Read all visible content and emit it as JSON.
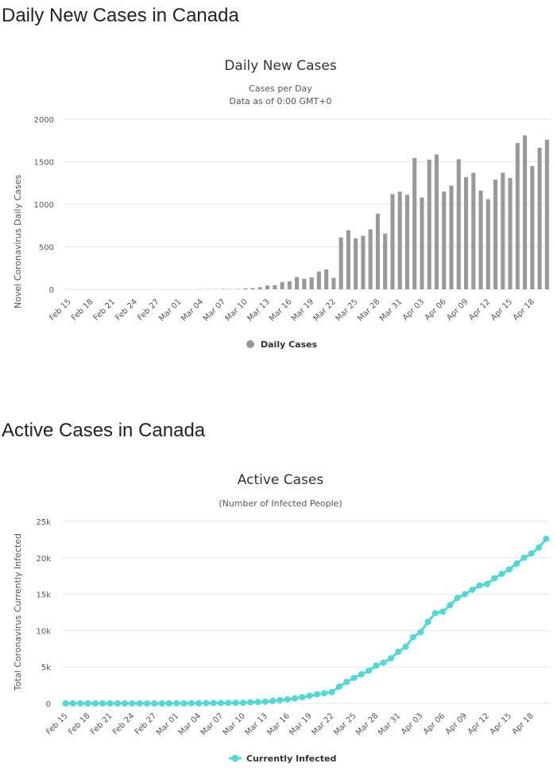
{
  "page": {
    "section1_title": "Daily New Cases in Canada",
    "section2_title": "Active Cases in Canada"
  },
  "chart_data": [
    {
      "type": "bar",
      "title": "Daily New Cases",
      "subtitle_lines": [
        "Cases per Day",
        "Data as of 0:00 GMT+0"
      ],
      "xlabel": "",
      "ylabel": "Novel Coronavirus Daily Cases",
      "ylim": [
        0,
        2000
      ],
      "y_ticks": [
        "0",
        "500",
        "1000",
        "1500",
        "2000"
      ],
      "y_tick_values": [
        0,
        500,
        1000,
        1500,
        2000
      ],
      "categories": [
        "Feb 15",
        "Feb 16",
        "Feb 17",
        "Feb 18",
        "Feb 19",
        "Feb 20",
        "Feb 21",
        "Feb 22",
        "Feb 23",
        "Feb 24",
        "Feb 25",
        "Feb 26",
        "Feb 27",
        "Feb 28",
        "Feb 29",
        "Mar 01",
        "Mar 02",
        "Mar 03",
        "Mar 04",
        "Mar 05",
        "Mar 06",
        "Mar 07",
        "Mar 08",
        "Mar 09",
        "Mar 10",
        "Mar 11",
        "Mar 12",
        "Mar 13",
        "Mar 14",
        "Mar 15",
        "Mar 16",
        "Mar 17",
        "Mar 18",
        "Mar 19",
        "Mar 20",
        "Mar 21",
        "Mar 22",
        "Mar 23",
        "Mar 24",
        "Mar 25",
        "Mar 26",
        "Mar 27",
        "Mar 28",
        "Mar 29",
        "Mar 30",
        "Mar 31",
        "Apr 01",
        "Apr 02",
        "Apr 03",
        "Apr 04",
        "Apr 05",
        "Apr 06",
        "Apr 07",
        "Apr 08",
        "Apr 09",
        "Apr 10",
        "Apr 11",
        "Apr 12",
        "Apr 13",
        "Apr 14",
        "Apr 15",
        "Apr 16",
        "Apr 17",
        "Apr 18",
        "Apr 19",
        "Apr 20"
      ],
      "x_tick_labels": [
        "Feb 15",
        "Feb 18",
        "Feb 21",
        "Feb 24",
        "Feb 27",
        "Mar 01",
        "Mar 04",
        "Mar 07",
        "Mar 10",
        "Mar 13",
        "Mar 16",
        "Mar 19",
        "Mar 22",
        "Mar 25",
        "Mar 28",
        "Mar 31",
        "Apr 03",
        "Apr 06",
        "Apr 09",
        "Apr 12",
        "Apr 15",
        "Apr 18"
      ],
      "series": [
        {
          "name": "Daily Cases",
          "color": "#999999",
          "values": [
            0,
            0,
            0,
            0,
            0,
            0,
            0,
            0,
            0,
            0,
            0,
            0,
            0,
            0,
            0,
            0,
            0,
            0,
            2,
            2,
            3,
            5,
            2,
            4,
            12,
            15,
            25,
            45,
            50,
            85,
            95,
            145,
            125,
            140,
            210,
            235,
            135,
            610,
            695,
            600,
            630,
            705,
            890,
            655,
            1120,
            1150,
            1110,
            1545,
            1080,
            1525,
            1585,
            1150,
            1220,
            1530,
            1320,
            1370,
            1160,
            1060,
            1290,
            1370,
            1310,
            1720,
            1810,
            1450,
            1665,
            1760
          ]
        }
      ],
      "legend": "bottom-center",
      "grid": true
    },
    {
      "type": "line",
      "title": "Active Cases",
      "subtitle_lines": [
        "(Number of Infected People)"
      ],
      "xlabel": "",
      "ylabel": "Total Coronavirus Currently Infected",
      "ylim": [
        0,
        25000
      ],
      "y_ticks": [
        "0",
        "5k",
        "10k",
        "15k",
        "20k",
        "25k"
      ],
      "y_tick_values": [
        0,
        5000,
        10000,
        15000,
        20000,
        25000
      ],
      "categories": [
        "Feb 15",
        "Feb 16",
        "Feb 17",
        "Feb 18",
        "Feb 19",
        "Feb 20",
        "Feb 21",
        "Feb 22",
        "Feb 23",
        "Feb 24",
        "Feb 25",
        "Feb 26",
        "Feb 27",
        "Feb 28",
        "Feb 29",
        "Mar 01",
        "Mar 02",
        "Mar 03",
        "Mar 04",
        "Mar 05",
        "Mar 06",
        "Mar 07",
        "Mar 08",
        "Mar 09",
        "Mar 10",
        "Mar 11",
        "Mar 12",
        "Mar 13",
        "Mar 14",
        "Mar 15",
        "Mar 16",
        "Mar 17",
        "Mar 18",
        "Mar 19",
        "Mar 20",
        "Mar 21",
        "Mar 22",
        "Mar 23",
        "Mar 24",
        "Mar 25",
        "Mar 26",
        "Mar 27",
        "Mar 28",
        "Mar 29",
        "Mar 30",
        "Mar 31",
        "Apr 01",
        "Apr 02",
        "Apr 03",
        "Apr 04",
        "Apr 05",
        "Apr 06",
        "Apr 07",
        "Apr 08",
        "Apr 09",
        "Apr 10",
        "Apr 11",
        "Apr 12",
        "Apr 13",
        "Apr 14",
        "Apr 15",
        "Apr 16",
        "Apr 17",
        "Apr 18",
        "Apr 19",
        "Apr 20"
      ],
      "x_tick_labels": [
        "Feb 15",
        "Feb 18",
        "Feb 21",
        "Feb 24",
        "Feb 27",
        "Mar 01",
        "Mar 04",
        "Mar 07",
        "Mar 10",
        "Mar 13",
        "Mar 16",
        "Mar 19",
        "Mar 22",
        "Mar 25",
        "Mar 28",
        "Mar 31",
        "Apr 03",
        "Apr 06",
        "Apr 09",
        "Apr 12",
        "Apr 15",
        "Apr 18"
      ],
      "series": [
        {
          "name": "Currently Infected",
          "color": "#50dad3",
          "values": [
            5,
            5,
            5,
            5,
            5,
            5,
            5,
            5,
            5,
            5,
            5,
            5,
            5,
            5,
            10,
            12,
            15,
            18,
            25,
            35,
            50,
            60,
            70,
            85,
            100,
            150,
            200,
            250,
            350,
            450,
            550,
            700,
            850,
            1050,
            1250,
            1400,
            1550,
            2300,
            2950,
            3500,
            4000,
            4500,
            5200,
            5600,
            6200,
            7100,
            7800,
            9100,
            9800,
            11200,
            12400,
            12600,
            13500,
            14500,
            15000,
            15600,
            16200,
            16400,
            17200,
            17800,
            18400,
            19200,
            20000,
            20600,
            21400,
            22600
          ]
        }
      ],
      "legend": "bottom-center",
      "grid": true
    }
  ]
}
